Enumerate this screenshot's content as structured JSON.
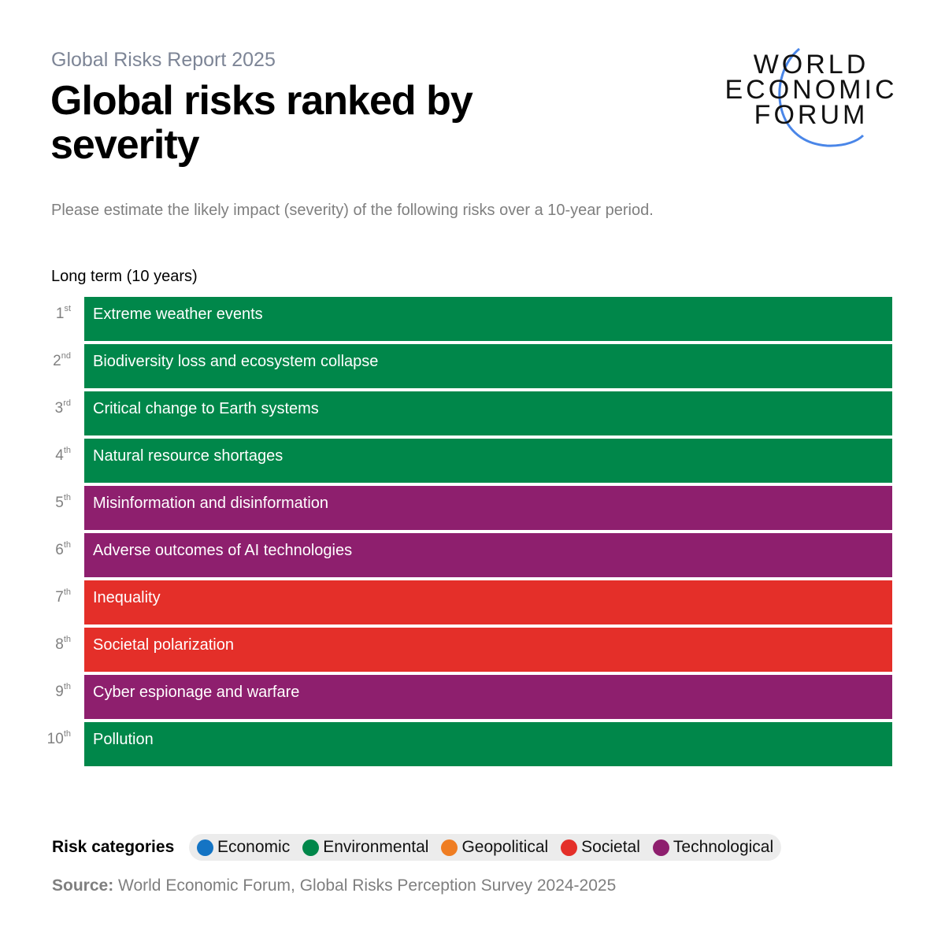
{
  "header": {
    "kicker": "Global Risks Report 2025",
    "title": "Global risks ranked by severity",
    "subtitle": "Please estimate the likely impact (severity) of the following risks over a 10-year period.",
    "logo_text": [
      "WORLD",
      "ECONOMIC",
      "FORUM"
    ]
  },
  "colors": {
    "Economic": "#1474c4",
    "Environmental": "#00874a",
    "Geopolitical": "#ef7d22",
    "Societal": "#e42f29",
    "Technological": "#8e1f6e",
    "logo_arc": "#4a86e8"
  },
  "chart_data": {
    "type": "table",
    "title": "Long term (10 years)",
    "rows": [
      {
        "rank": "1",
        "suffix": "st",
        "label": "Extreme weather events",
        "category": "Environmental"
      },
      {
        "rank": "2",
        "suffix": "nd",
        "label": "Biodiversity loss and ecosystem collapse",
        "category": "Environmental"
      },
      {
        "rank": "3",
        "suffix": "rd",
        "label": "Critical change to Earth systems",
        "category": "Environmental"
      },
      {
        "rank": "4",
        "suffix": "th",
        "label": "Natural resource shortages",
        "category": "Environmental"
      },
      {
        "rank": "5",
        "suffix": "th",
        "label": "Misinformation and disinformation",
        "category": "Technological"
      },
      {
        "rank": "6",
        "suffix": "th",
        "label": "Adverse outcomes of AI technologies",
        "category": "Technological"
      },
      {
        "rank": "7",
        "suffix": "th",
        "label": "Inequality",
        "category": "Societal"
      },
      {
        "rank": "8",
        "suffix": "th",
        "label": "Societal polarization",
        "category": "Societal"
      },
      {
        "rank": "9",
        "suffix": "th",
        "label": "Cyber espionage and warfare",
        "category": "Technological"
      },
      {
        "rank": "10",
        "suffix": "th",
        "label": "Pollution",
        "category": "Environmental"
      }
    ]
  },
  "legend": {
    "title": "Risk categories",
    "items": [
      "Economic",
      "Environmental",
      "Geopolitical",
      "Societal",
      "Technological"
    ]
  },
  "source": {
    "label": "Source:",
    "text": "World Economic Forum, Global Risks Perception Survey 2024-2025"
  }
}
